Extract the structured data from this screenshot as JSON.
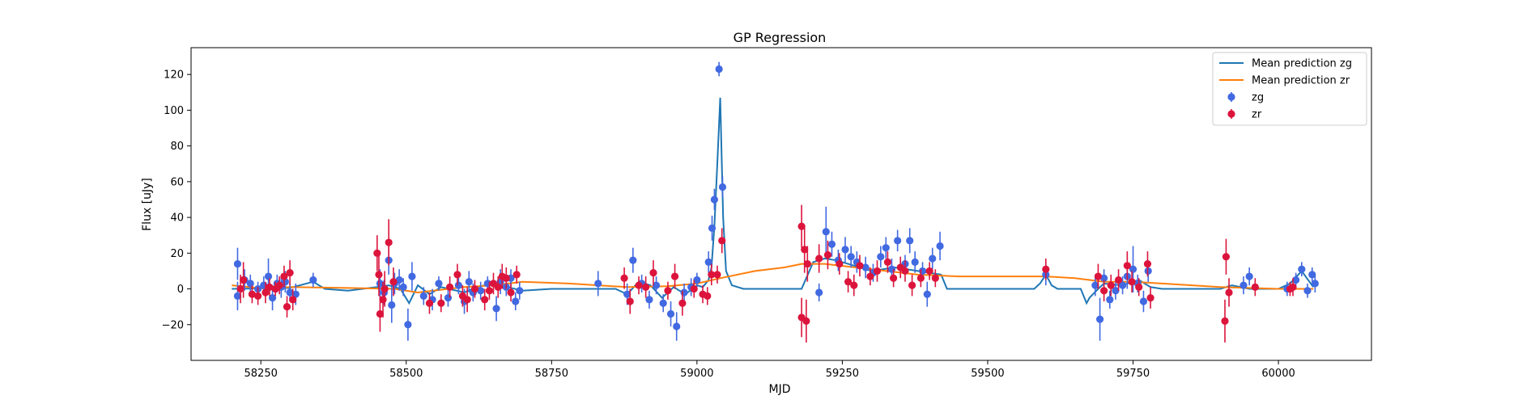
{
  "colors": {
    "zg_line": "#1f77b4",
    "zr_line": "#ff7f0e",
    "zg_points": "#4169e1",
    "zr_points": "#dc143c"
  },
  "chart_data": {
    "type": "scatter",
    "title": "GP Regression",
    "xlabel": "MJD",
    "ylabel": "Flux [uJy]",
    "xlim": [
      58130,
      60160
    ],
    "ylim": [
      -40,
      135
    ],
    "xticks": [
      58250,
      58500,
      58750,
      59000,
      59250,
      59500,
      59750,
      60000
    ],
    "yticks": [
      -20,
      0,
      20,
      40,
      60,
      80,
      100,
      120
    ],
    "legend_position": "top-right",
    "grid": false,
    "lines": [
      {
        "name": "Mean prediction zg",
        "color": "#1f77b4",
        "x": [
          58200,
          58300,
          58340,
          58360,
          58400,
          58450,
          58470,
          58490,
          58505,
          58520,
          58540,
          58560,
          58600,
          58620,
          58650,
          58700,
          58750,
          58800,
          58860,
          58880,
          58900,
          58920,
          58940,
          58960,
          58980,
          59000,
          59010,
          59020,
          59025,
          59030,
          59035,
          59040,
          59045,
          59050,
          59060,
          59080,
          59100,
          59150,
          59180,
          59200,
          59220,
          59240,
          59260,
          59300,
          59340,
          59380,
          59420,
          59430,
          59450,
          59500,
          59580,
          59590,
          59600,
          59610,
          59620,
          59660,
          59670,
          59675,
          59690,
          59700,
          59730,
          59760,
          59780,
          59800,
          59850,
          59900,
          59920,
          59950,
          60000,
          60020,
          60040,
          60060
        ],
        "y": [
          0,
          0.5,
          4,
          0,
          -1,
          1,
          2,
          0,
          -8,
          2,
          -3,
          1,
          -2,
          1,
          3,
          -1,
          0,
          0,
          0,
          -3,
          4,
          2,
          -5,
          1,
          -3,
          2,
          1,
          5,
          12,
          35,
          70,
          107,
          40,
          10,
          2,
          0,
          0,
          0,
          0,
          15,
          17,
          16,
          14,
          10,
          12,
          10,
          8,
          0,
          0,
          0,
          0,
          3,
          8,
          2,
          0,
          0,
          -8,
          -5,
          0,
          3,
          2,
          5,
          1,
          0,
          0,
          0,
          2,
          0,
          0,
          3,
          10,
          1
        ]
      },
      {
        "name": "Mean prediction zr",
        "color": "#ff7f0e",
        "x": [
          58200,
          58260,
          58300,
          58400,
          58480,
          58520,
          58600,
          58650,
          58700,
          58780,
          58880,
          58950,
          59000,
          59040,
          59100,
          59150,
          59180,
          59220,
          59300,
          59380,
          59450,
          59550,
          59600,
          59650,
          59700,
          59750,
          59800,
          59900,
          59950,
          60000,
          60060
        ],
        "y": [
          2,
          0,
          1,
          0.5,
          0,
          -2,
          1,
          2,
          4,
          3,
          1,
          1.5,
          3,
          6,
          10,
          12,
          14,
          14,
          11,
          8,
          7,
          7,
          7,
          6,
          4,
          4,
          3,
          1,
          0.5,
          0,
          0
        ]
      }
    ],
    "series": [
      {
        "name": "zg",
        "color": "#4169e1",
        "points": [
          [
            58210,
            14,
            9
          ],
          [
            58210,
            -4,
            8
          ],
          [
            58222,
            5,
            6
          ],
          [
            58232,
            3,
            5
          ],
          [
            58245,
            0,
            4
          ],
          [
            58255,
            2,
            5
          ],
          [
            58263,
            7,
            10
          ],
          [
            58270,
            -5,
            7
          ],
          [
            58278,
            3,
            5
          ],
          [
            58285,
            1,
            6
          ],
          [
            58292,
            4,
            6
          ],
          [
            58300,
            -2,
            5
          ],
          [
            58310,
            -3,
            6
          ],
          [
            58340,
            5,
            4
          ],
          [
            58455,
            3,
            8
          ],
          [
            58462,
            -2,
            7
          ],
          [
            58470,
            16,
            8
          ],
          [
            58475,
            -9,
            10
          ],
          [
            58480,
            3,
            6
          ],
          [
            58488,
            5,
            6
          ],
          [
            58495,
            1,
            5
          ],
          [
            58503,
            -20,
            9
          ],
          [
            58510,
            7,
            8
          ],
          [
            58530,
            -4,
            5
          ],
          [
            58545,
            -6,
            6
          ],
          [
            58556,
            3,
            4
          ],
          [
            58572,
            -5,
            5
          ],
          [
            58590,
            2,
            5
          ],
          [
            58600,
            -7,
            7
          ],
          [
            58608,
            4,
            6
          ],
          [
            58615,
            -2,
            5
          ],
          [
            58628,
            -1,
            5
          ],
          [
            58640,
            3,
            4
          ],
          [
            58655,
            -11,
            7
          ],
          [
            58662,
            4,
            7
          ],
          [
            58672,
            1,
            5
          ],
          [
            58680,
            6,
            5
          ],
          [
            58688,
            -7,
            5
          ],
          [
            58695,
            -1,
            5
          ],
          [
            58830,
            3,
            7
          ],
          [
            58880,
            -3,
            6
          ],
          [
            58890,
            16,
            7
          ],
          [
            58905,
            3,
            5
          ],
          [
            58918,
            -6,
            5
          ],
          [
            58930,
            2,
            5
          ],
          [
            58942,
            -8,
            5
          ],
          [
            58955,
            -14,
            7
          ],
          [
            58965,
            -21,
            8
          ],
          [
            58978,
            -2,
            5
          ],
          [
            58990,
            1,
            5
          ],
          [
            59000,
            5,
            4
          ],
          [
            59020,
            15,
            6
          ],
          [
            59026,
            34,
            7
          ],
          [
            59030,
            50,
            6
          ],
          [
            59038,
            123,
            4
          ],
          [
            59044,
            57,
            6
          ],
          [
            59210,
            -2,
            5
          ],
          [
            59222,
            32,
            14
          ],
          [
            59232,
            25,
            7
          ],
          [
            59243,
            16,
            6
          ],
          [
            59255,
            22,
            7
          ],
          [
            59265,
            18,
            6
          ],
          [
            59275,
            15,
            6
          ],
          [
            59290,
            12,
            6
          ],
          [
            59303,
            9,
            5
          ],
          [
            59316,
            18,
            6
          ],
          [
            59325,
            23,
            6
          ],
          [
            59335,
            11,
            6
          ],
          [
            59345,
            27,
            6
          ],
          [
            59358,
            14,
            5
          ],
          [
            59366,
            27,
            7
          ],
          [
            59375,
            15,
            6
          ],
          [
            59388,
            10,
            5
          ],
          [
            59396,
            -3,
            7
          ],
          [
            59405,
            17,
            6
          ],
          [
            59418,
            24,
            8
          ],
          [
            59600,
            8,
            6
          ],
          [
            59685,
            2,
            6
          ],
          [
            59693,
            -17,
            12
          ],
          [
            59700,
            6,
            5
          ],
          [
            59710,
            -6,
            5
          ],
          [
            59720,
            -1,
            5
          ],
          [
            59732,
            2,
            5
          ],
          [
            59740,
            7,
            7
          ],
          [
            59750,
            11,
            13
          ],
          [
            59758,
            3,
            5
          ],
          [
            59768,
            -7,
            6
          ],
          [
            59776,
            10,
            6
          ],
          [
            59940,
            2,
            5
          ],
          [
            59950,
            7,
            5
          ],
          [
            60015,
            0,
            4
          ],
          [
            60030,
            5,
            4
          ],
          [
            60040,
            11,
            4
          ],
          [
            60050,
            -1,
            4
          ],
          [
            60058,
            8,
            4
          ],
          [
            60063,
            3,
            5
          ]
        ]
      },
      {
        "name": "zr",
        "color": "#dc143c",
        "points": [
          [
            58215,
            0,
            8
          ],
          [
            58220,
            5,
            10
          ],
          [
            58235,
            -3,
            5
          ],
          [
            58245,
            -4,
            5
          ],
          [
            58258,
            -2,
            6
          ],
          [
            58265,
            1,
            5
          ],
          [
            58275,
            0,
            4
          ],
          [
            58282,
            2,
            5
          ],
          [
            58290,
            7,
            6
          ],
          [
            58295,
            -10,
            6
          ],
          [
            58300,
            9,
            7
          ],
          [
            58305,
            -6,
            6
          ],
          [
            58450,
            20,
            10
          ],
          [
            58453,
            8,
            12
          ],
          [
            58455,
            -14,
            10
          ],
          [
            58460,
            -6,
            10
          ],
          [
            58463,
            0,
            10
          ],
          [
            58470,
            26,
            13
          ],
          [
            58478,
            4,
            8
          ],
          [
            58540,
            -8,
            6
          ],
          [
            58560,
            -8,
            5
          ],
          [
            58575,
            1,
            6
          ],
          [
            58588,
            8,
            6
          ],
          [
            58597,
            -4,
            6
          ],
          [
            58605,
            -6,
            7
          ],
          [
            58618,
            0,
            5
          ],
          [
            58635,
            -6,
            6
          ],
          [
            58643,
            -1,
            5
          ],
          [
            58650,
            3,
            6
          ],
          [
            58658,
            1,
            6
          ],
          [
            58665,
            7,
            7
          ],
          [
            58672,
            6,
            6
          ],
          [
            58680,
            -2,
            5
          ],
          [
            58690,
            8,
            5
          ],
          [
            58875,
            6,
            6
          ],
          [
            58885,
            -7,
            7
          ],
          [
            58900,
            2,
            5
          ],
          [
            58912,
            1,
            6
          ],
          [
            58925,
            9,
            7
          ],
          [
            58950,
            -1,
            5
          ],
          [
            58962,
            7,
            7
          ],
          [
            58975,
            -8,
            7
          ],
          [
            58995,
            0,
            5
          ],
          [
            59010,
            -3,
            5
          ],
          [
            59018,
            -4,
            5
          ],
          [
            59025,
            8,
            6
          ],
          [
            59035,
            8,
            5
          ],
          [
            59043,
            27,
            7
          ],
          [
            59180,
            35,
            12
          ],
          [
            59185,
            22,
            13
          ],
          [
            59190,
            14,
            10
          ],
          [
            59180,
            -16,
            11
          ],
          [
            59188,
            -18,
            12
          ],
          [
            59210,
            17,
            8
          ],
          [
            59225,
            19,
            8
          ],
          [
            59245,
            14,
            6
          ],
          [
            59260,
            4,
            6
          ],
          [
            59270,
            2,
            6
          ],
          [
            59280,
            13,
            6
          ],
          [
            59298,
            7,
            5
          ],
          [
            59310,
            10,
            6
          ],
          [
            59328,
            15,
            6
          ],
          [
            59338,
            6,
            5
          ],
          [
            59350,
            12,
            6
          ],
          [
            59358,
            10,
            6
          ],
          [
            59370,
            2,
            6
          ],
          [
            59385,
            6,
            5
          ],
          [
            59400,
            10,
            5
          ],
          [
            59410,
            6,
            5
          ],
          [
            59600,
            11,
            6
          ],
          [
            59690,
            7,
            7
          ],
          [
            59700,
            -1,
            6
          ],
          [
            59712,
            2,
            6
          ],
          [
            59725,
            5,
            6
          ],
          [
            59740,
            13,
            8
          ],
          [
            59748,
            4,
            6
          ],
          [
            59760,
            1,
            5
          ],
          [
            59775,
            14,
            7
          ],
          [
            59780,
            -5,
            6
          ],
          [
            59910,
            18,
            10
          ],
          [
            59915,
            -2,
            8
          ],
          [
            59908,
            -18,
            12
          ],
          [
            59960,
            1,
            5
          ],
          [
            60020,
            0,
            4
          ],
          [
            60025,
            1,
            5
          ]
        ]
      }
    ]
  }
}
